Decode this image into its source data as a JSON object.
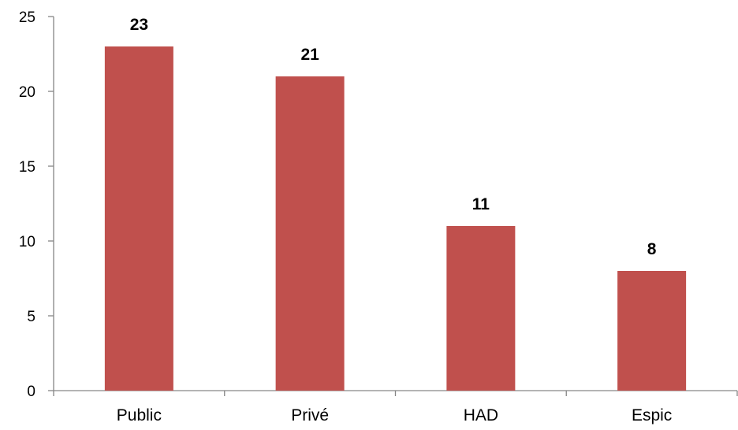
{
  "chart_data": {
    "type": "bar",
    "categories": [
      "Public",
      "Privé",
      "HAD",
      "Espic"
    ],
    "values": [
      23,
      21,
      11,
      8
    ],
    "data_labels": [
      "23",
      "21",
      "11",
      "8"
    ],
    "ylim": [
      0,
      25
    ],
    "yticks": [
      0,
      5,
      10,
      15,
      20,
      25
    ],
    "ytick_labels": [
      "0",
      "5",
      "10",
      "15",
      "20",
      "25"
    ],
    "grid": false,
    "legend": "none",
    "bar_color": "#c0504d"
  }
}
